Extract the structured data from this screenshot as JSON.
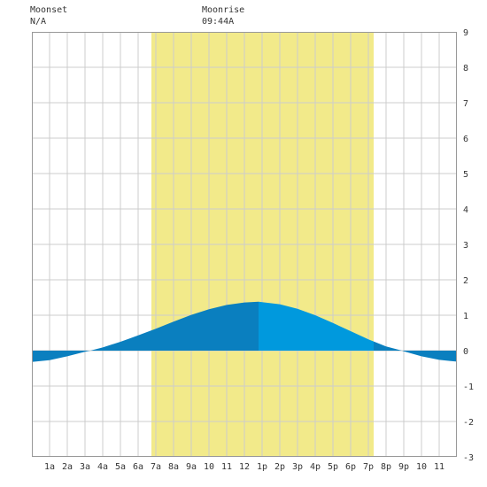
{
  "header": {
    "moonset_label": "Moonset",
    "moonset_value": "N/A",
    "moonrise_label": "Moonrise",
    "moonrise_value": "09:44A"
  },
  "colors": {
    "daylight": "#f2ea8a",
    "tide_fill_night": "#0a7fbf",
    "tide_fill_day_rising": "#0a7fbf",
    "tide_fill_day_falling": "#0099dd",
    "grid": "#cccccc",
    "plot_border": "#999999",
    "text": "#333333"
  },
  "chart_data": {
    "type": "area",
    "x_unit": "hour of day",
    "x_ticks": [
      "1a",
      "2a",
      "3a",
      "4a",
      "5a",
      "6a",
      "7a",
      "8a",
      "9a",
      "10",
      "11",
      "12",
      "1p",
      "2p",
      "3p",
      "4p",
      "5p",
      "6p",
      "7p",
      "8p",
      "9p",
      "10",
      "11"
    ],
    "xlim": [
      0,
      24
    ],
    "ylim": [
      -3,
      9
    ],
    "y_ticks": [
      "-3",
      "-2",
      "-1",
      "0",
      "1",
      "2",
      "3",
      "4",
      "5",
      "6",
      "7",
      "8",
      "9"
    ],
    "daylight_start_hour": 6.75,
    "daylight_end_hour": 19.3,
    "high_tide_hour": 12.8,
    "tide": {
      "x": [
        0,
        1,
        2,
        3,
        3.3,
        4,
        5,
        6,
        7,
        8,
        9,
        10,
        11,
        12,
        12.8,
        13,
        14,
        15,
        16,
        17,
        18,
        19,
        20,
        20.9,
        21,
        22,
        23,
        24
      ],
      "y": [
        -0.32,
        -0.27,
        -0.16,
        -0.03,
        0.0,
        0.09,
        0.25,
        0.43,
        0.62,
        0.82,
        1.01,
        1.17,
        1.29,
        1.36,
        1.38,
        1.37,
        1.31,
        1.18,
        1.0,
        0.78,
        0.55,
        0.32,
        0.12,
        0.0,
        -0.02,
        -0.16,
        -0.26,
        -0.31
      ]
    }
  }
}
